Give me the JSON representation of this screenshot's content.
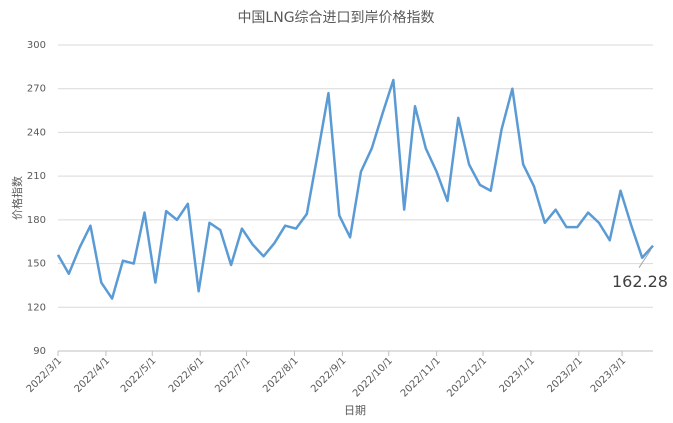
{
  "chart_data": {
    "type": "line",
    "title": "中国LNG综合进口到岸价格指数",
    "x_label": "日期",
    "y_label": "价格指数",
    "x": [
      "2022/3/1",
      "2022/3/8",
      "2022/3/15",
      "2022/3/22",
      "2022/3/29",
      "2022/4/5",
      "2022/4/12",
      "2022/4/19",
      "2022/4/26",
      "2022/5/3",
      "2022/5/10",
      "2022/5/17",
      "2022/5/24",
      "2022/5/31",
      "2022/6/7",
      "2022/6/14",
      "2022/6/21",
      "2022/6/28",
      "2022/7/5",
      "2022/7/12",
      "2022/7/19",
      "2022/7/26",
      "2022/8/2",
      "2022/8/9",
      "2022/8/16",
      "2022/8/23",
      "2022/8/30",
      "2022/9/6",
      "2022/9/13",
      "2022/9/20",
      "2022/9/27",
      "2022/10/4",
      "2022/10/11",
      "2022/10/18",
      "2022/10/25",
      "2022/11/1",
      "2022/11/8",
      "2022/11/15",
      "2022/11/22",
      "2022/11/29",
      "2022/12/6",
      "2022/12/13",
      "2022/12/20",
      "2022/12/27",
      "2023/1/3",
      "2023/1/10",
      "2023/1/17",
      "2023/1/24",
      "2023/1/31",
      "2023/2/7",
      "2023/2/14",
      "2023/2/21",
      "2023/2/28",
      "2023/3/7",
      "2023/3/14",
      "2023/3/21"
    ],
    "values": [
      156,
      143,
      161,
      176,
      137,
      126,
      152,
      150,
      185,
      137,
      186,
      180,
      191,
      131,
      178,
      173,
      149,
      174,
      163,
      155,
      164,
      176,
      174,
      184,
      225,
      267,
      183,
      168,
      213,
      229,
      253,
      276,
      187,
      258,
      229,
      213,
      193,
      250,
      218,
      204,
      200,
      242,
      270,
      218,
      203,
      178,
      187,
      175,
      175,
      185,
      178,
      166,
      200,
      176,
      154,
      162.28
    ],
    "color": "#5b9bd5",
    "xlim": [
      "2022/3/1",
      "2023/3/21"
    ],
    "xticks": [
      "2022/3/1",
      "2022/4/1",
      "2022/5/1",
      "2022/6/1",
      "2022/7/1",
      "2022/8/1",
      "2022/9/1",
      "2022/10/1",
      "2022/11/1",
      "2022/12/1",
      "2023/1/1",
      "2023/2/1",
      "2023/3/1"
    ],
    "ylim": [
      90,
      300
    ],
    "yticks": [
      90,
      120,
      150,
      180,
      210,
      240,
      270,
      300
    ],
    "grid": true
  }
}
